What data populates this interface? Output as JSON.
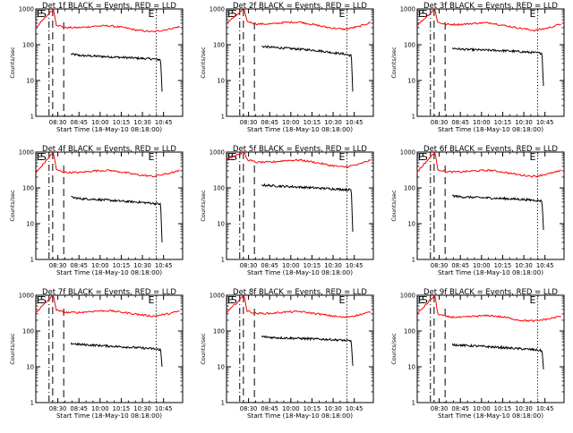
{
  "chart_data": [
    {
      "type": "line",
      "title": "Det 1f BLACK = Events, RED = LLD",
      "xlabel": "Start Time (18-May-10 08:18:00)",
      "ylabel": "Counts/sec",
      "yscale": "log",
      "ylim": [
        1,
        1000
      ],
      "xticks": [
        "08:30",
        "08:45",
        "10:00",
        "10:15",
        "10:30",
        "10:45"
      ],
      "yticks": [
        "1",
        "10",
        "100",
        "1000"
      ],
      "markers": [
        {
          "label": "E",
          "type": "dash-dot",
          "x": 0.0
        },
        {
          "label": "S",
          "type": "dash",
          "x": 0.115
        },
        {
          "label": "E",
          "type": "dot",
          "x": 0.82
        }
      ],
      "series": [
        {
          "name": "BLACK = Events",
          "color": "#000000",
          "x": [
            0.24,
            0.3,
            0.4,
            0.5,
            0.6,
            0.7,
            0.8,
            0.85,
            0.86
          ],
          "y": [
            55,
            50,
            48,
            46,
            44,
            42,
            40,
            38,
            5
          ]
        },
        {
          "name": "RED = LLD",
          "color": "#ff0000",
          "x": [
            0.0,
            0.12,
            0.14,
            0.2,
            0.3,
            0.4,
            0.5,
            0.6,
            0.7,
            0.8,
            0.9,
            0.98
          ],
          "y": [
            300,
            1000,
            360,
            300,
            300,
            330,
            340,
            300,
            250,
            230,
            270,
            320
          ]
        }
      ]
    },
    {
      "type": "line",
      "title": "Det 2f BLACK = Events, RED = LLD",
      "xlabel": "Start Time (18-May-10 08:18:00)",
      "ylabel": "Counts/sec",
      "yscale": "log",
      "ylim": [
        1,
        1000
      ],
      "xticks": [
        "08:30",
        "08:45",
        "10:00",
        "10:15",
        "10:30",
        "10:45"
      ],
      "yticks": [
        "1",
        "10",
        "100",
        "1000"
      ],
      "markers": [
        {
          "label": "E",
          "type": "dash-dot",
          "x": 0.0
        },
        {
          "label": "S",
          "type": "dash",
          "x": 0.115
        },
        {
          "label": "E",
          "type": "dot",
          "x": 0.82
        }
      ],
      "series": [
        {
          "name": "BLACK = Events",
          "color": "#000000",
          "x": [
            0.24,
            0.3,
            0.4,
            0.5,
            0.6,
            0.7,
            0.8,
            0.85,
            0.86
          ],
          "y": [
            90,
            85,
            80,
            75,
            70,
            62,
            55,
            50,
            5
          ]
        },
        {
          "name": "RED = LLD",
          "color": "#ff0000",
          "x": [
            0.0,
            0.12,
            0.14,
            0.2,
            0.3,
            0.4,
            0.5,
            0.6,
            0.7,
            0.8,
            0.9,
            0.98
          ],
          "y": [
            400,
            1000,
            450,
            380,
            380,
            420,
            430,
            360,
            300,
            270,
            320,
            420
          ]
        }
      ]
    },
    {
      "type": "line",
      "title": "Det 3f BLACK = Events, RED = LLD",
      "xlabel": "Start Time (18-May-10 08:18:00)",
      "ylabel": "Counts/sec",
      "yscale": "log",
      "ylim": [
        1,
        1000
      ],
      "xticks": [
        "08:30",
        "08:45",
        "10:00",
        "10:15",
        "10:30",
        "10:45"
      ],
      "yticks": [
        "1",
        "10",
        "100",
        "1000"
      ],
      "markers": [
        {
          "label": "E",
          "type": "dash-dot",
          "x": 0.0
        },
        {
          "label": "S",
          "type": "dash",
          "x": 0.115
        },
        {
          "label": "E",
          "type": "dot",
          "x": 0.82
        }
      ],
      "series": [
        {
          "name": "BLACK = Events",
          "color": "#000000",
          "x": [
            0.24,
            0.3,
            0.4,
            0.5,
            0.6,
            0.7,
            0.8,
            0.85,
            0.86
          ],
          "y": [
            80,
            75,
            72,
            70,
            68,
            64,
            60,
            58,
            7
          ]
        },
        {
          "name": "RED = LLD",
          "color": "#ff0000",
          "x": [
            0.0,
            0.12,
            0.14,
            0.2,
            0.3,
            0.4,
            0.5,
            0.6,
            0.7,
            0.8,
            0.9,
            0.98
          ],
          "y": [
            350,
            1000,
            420,
            370,
            370,
            400,
            410,
            340,
            290,
            250,
            300,
            380
          ]
        }
      ]
    },
    {
      "type": "line",
      "title": "Det 4f BLACK = Events, RED = LLD",
      "xlabel": "Start Time (18-May-10 08:18:00)",
      "ylabel": "Counts/sec",
      "yscale": "log",
      "ylim": [
        1,
        1000
      ],
      "xticks": [
        "08:30",
        "08:45",
        "10:00",
        "10:15",
        "10:30",
        "10:45"
      ],
      "yticks": [
        "1",
        "10",
        "100",
        "1000"
      ],
      "markers": [
        {
          "label": "E",
          "type": "dash-dot",
          "x": 0.0
        },
        {
          "label": "S",
          "type": "dash",
          "x": 0.115
        },
        {
          "label": "E",
          "type": "dot",
          "x": 0.82
        }
      ],
      "series": [
        {
          "name": "BLACK = Events",
          "color": "#000000",
          "x": [
            0.24,
            0.3,
            0.4,
            0.5,
            0.6,
            0.7,
            0.8,
            0.85,
            0.86
          ],
          "y": [
            55,
            50,
            48,
            45,
            42,
            40,
            37,
            35,
            3
          ]
        },
        {
          "name": "RED = LLD",
          "color": "#ff0000",
          "x": [
            0.0,
            0.12,
            0.14,
            0.2,
            0.3,
            0.4,
            0.5,
            0.6,
            0.7,
            0.8,
            0.9,
            0.98
          ],
          "y": [
            260,
            1000,
            320,
            270,
            270,
            300,
            310,
            270,
            230,
            210,
            250,
            300
          ]
        }
      ]
    },
    {
      "type": "line",
      "title": "Det 5f BLACK = Events, RED = LLD",
      "xlabel": "Start Time (18-May-10 08:18:00)",
      "ylabel": "Counts/sec",
      "yscale": "log",
      "ylim": [
        1,
        1000
      ],
      "xticks": [
        "08:30",
        "08:45",
        "10:00",
        "10:15",
        "10:30",
        "10:45"
      ],
      "yticks": [
        "1",
        "10",
        "100",
        "1000"
      ],
      "markers": [
        {
          "label": "E",
          "type": "dash-dot",
          "x": 0.0
        },
        {
          "label": "S",
          "type": "dash",
          "x": 0.115
        },
        {
          "label": "E",
          "type": "dot",
          "x": 0.82
        }
      ],
      "series": [
        {
          "name": "BLACK = Events",
          "color": "#000000",
          "x": [
            0.24,
            0.3,
            0.4,
            0.5,
            0.6,
            0.7,
            0.8,
            0.85,
            0.86
          ],
          "y": [
            120,
            115,
            110,
            105,
            100,
            95,
            90,
            88,
            6
          ]
        },
        {
          "name": "RED = LLD",
          "color": "#ff0000",
          "x": [
            0.0,
            0.12,
            0.14,
            0.2,
            0.3,
            0.4,
            0.5,
            0.6,
            0.7,
            0.8,
            0.9,
            0.98
          ],
          "y": [
            650,
            1000,
            620,
            520,
            520,
            580,
            600,
            520,
            430,
            380,
            450,
            600
          ]
        }
      ]
    },
    {
      "type": "line",
      "title": "Det 6f BLACK = Events, RED = LLD",
      "xlabel": "Start Time (18-May-10 08:18:00)",
      "ylabel": "Counts/sec",
      "yscale": "log",
      "ylim": [
        1,
        1000
      ],
      "xticks": [
        "08:30",
        "08:45",
        "10:00",
        "10:15",
        "10:30",
        "10:45"
      ],
      "yticks": [
        "1",
        "10",
        "100",
        "1000"
      ],
      "markers": [
        {
          "label": "E",
          "type": "dash-dot",
          "x": 0.0
        },
        {
          "label": "S",
          "type": "dash",
          "x": 0.115
        },
        {
          "label": "E",
          "type": "dot",
          "x": 0.82
        }
      ],
      "series": [
        {
          "name": "BLACK = Events",
          "color": "#000000",
          "x": [
            0.24,
            0.3,
            0.4,
            0.5,
            0.6,
            0.7,
            0.8,
            0.85,
            0.86
          ],
          "y": [
            60,
            56,
            54,
            52,
            50,
            48,
            45,
            43,
            7
          ]
        },
        {
          "name": "RED = LLD",
          "color": "#ff0000",
          "x": [
            0.0,
            0.12,
            0.14,
            0.2,
            0.3,
            0.4,
            0.5,
            0.6,
            0.7,
            0.8,
            0.9,
            0.98
          ],
          "y": [
            280,
            1000,
            330,
            280,
            280,
            300,
            310,
            270,
            230,
            210,
            250,
            300
          ]
        }
      ]
    },
    {
      "type": "line",
      "title": "Det 7f BLACK = Events, RED = LLD",
      "xlabel": "Start Time (18-May-10 08:18:00)",
      "ylabel": "Counts/sec",
      "yscale": "log",
      "ylim": [
        1,
        1000
      ],
      "xticks": [
        "08:30",
        "08:45",
        "10:00",
        "10:15",
        "10:30",
        "10:45"
      ],
      "yticks": [
        "1",
        "10",
        "100",
        "1000"
      ],
      "markers": [
        {
          "label": "E",
          "type": "dash-dot",
          "x": 0.0
        },
        {
          "label": "S",
          "type": "dash",
          "x": 0.115
        },
        {
          "label": "E",
          "type": "dot",
          "x": 0.82
        }
      ],
      "series": [
        {
          "name": "BLACK = Events",
          "color": "#000000",
          "x": [
            0.24,
            0.3,
            0.4,
            0.5,
            0.6,
            0.7,
            0.8,
            0.85,
            0.86
          ],
          "y": [
            45,
            42,
            40,
            38,
            36,
            34,
            32,
            30,
            10
          ]
        },
        {
          "name": "RED = LLD",
          "color": "#ff0000",
          "x": [
            0.0,
            0.12,
            0.14,
            0.2,
            0.3,
            0.4,
            0.5,
            0.6,
            0.7,
            0.8,
            0.9,
            0.98
          ],
          "y": [
            330,
            1000,
            380,
            330,
            330,
            360,
            370,
            330,
            290,
            260,
            300,
            360
          ]
        }
      ]
    },
    {
      "type": "line",
      "title": "Det 8f BLACK = Events, RED = LLD",
      "xlabel": "Start Time (18-May-10 08:18:00)",
      "ylabel": "Counts/sec",
      "yscale": "log",
      "ylim": [
        1,
        1000
      ],
      "xticks": [
        "08:30",
        "08:45",
        "10:00",
        "10:15",
        "10:30",
        "10:45"
      ],
      "yticks": [
        "1",
        "10",
        "100",
        "1000"
      ],
      "markers": [
        {
          "label": "E",
          "type": "dash-dot",
          "x": 0.0
        },
        {
          "label": "S",
          "type": "dash",
          "x": 0.115
        },
        {
          "label": "E",
          "type": "dot",
          "x": 0.82
        }
      ],
      "series": [
        {
          "name": "BLACK = Events",
          "color": "#000000",
          "x": [
            0.24,
            0.3,
            0.4,
            0.5,
            0.6,
            0.7,
            0.8,
            0.85,
            0.86
          ],
          "y": [
            70,
            66,
            64,
            62,
            60,
            58,
            55,
            52,
            10
          ]
        },
        {
          "name": "RED = LLD",
          "color": "#ff0000",
          "x": [
            0.0,
            0.12,
            0.14,
            0.2,
            0.3,
            0.4,
            0.5,
            0.6,
            0.7,
            0.8,
            0.9,
            0.98
          ],
          "y": [
            320,
            1000,
            360,
            310,
            310,
            340,
            350,
            310,
            270,
            240,
            280,
            340
          ]
        }
      ]
    },
    {
      "type": "line",
      "title": "Det 9f BLACK = Events, RED = LLD",
      "xlabel": "Start Time (18-May-10 08:18:00)",
      "ylabel": "Counts/sec",
      "yscale": "log",
      "ylim": [
        1,
        1000
      ],
      "xticks": [
        "08:30",
        "08:45",
        "10:00",
        "10:15",
        "10:30",
        "10:45"
      ],
      "yticks": [
        "1",
        "10",
        "100",
        "1000"
      ],
      "markers": [
        {
          "label": "E",
          "type": "dash-dot",
          "x": 0.0
        },
        {
          "label": "S",
          "type": "dash",
          "x": 0.115
        },
        {
          "label": "E",
          "type": "dot",
          "x": 0.82
        }
      ],
      "series": [
        {
          "name": "BLACK = Events",
          "color": "#000000",
          "x": [
            0.24,
            0.3,
            0.4,
            0.5,
            0.6,
            0.7,
            0.8,
            0.85,
            0.86
          ],
          "y": [
            42,
            40,
            38,
            36,
            34,
            32,
            30,
            28,
            9
          ]
        },
        {
          "name": "RED = LLD",
          "color": "#ff0000",
          "x": [
            0.0,
            0.12,
            0.14,
            0.2,
            0.3,
            0.4,
            0.5,
            0.6,
            0.7,
            0.8,
            0.9,
            0.98
          ],
          "y": [
            300,
            1000,
            300,
            250,
            240,
            260,
            270,
            240,
            200,
            190,
            220,
            260
          ]
        }
      ]
    }
  ]
}
